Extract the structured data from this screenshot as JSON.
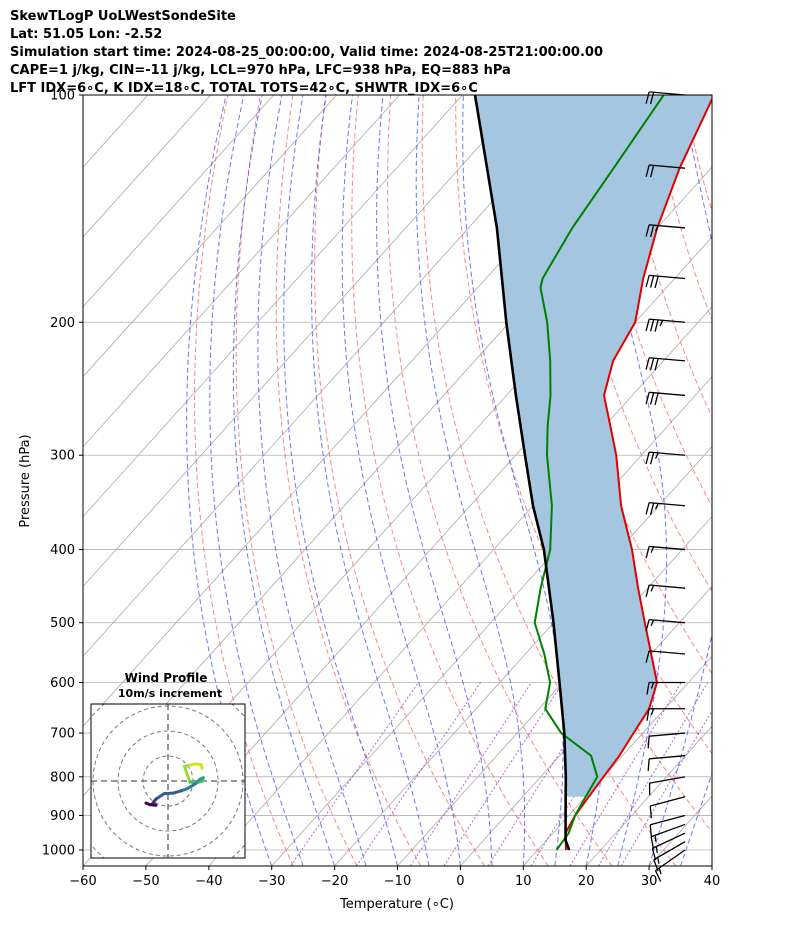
{
  "header": {
    "lines": [
      "SkewTLogP UoLWestSondeSite",
      "Lat: 51.05   Lon: -2.52",
      "Simulation start time: 2024-08-25_00:00:00, Valid time: 2024-08-25T21:00:00.00",
      "CAPE=1 j/kg, CIN=-11 j/kg, LCL=970 hPa, LFC=938 hPa, EQ=883 hPa",
      "LFT IDX=6∘C, K IDX=18∘C, TOTAL TOTS=42∘C, SHWTR_IDX=6∘C"
    ]
  },
  "chart_data": [
    {
      "type": "line",
      "subtype": "skew-t log-p",
      "xlabel": "Temperature (∘C)",
      "ylabel": "Pressure (hPa)",
      "xlim": [
        -60,
        40
      ],
      "ylim": [
        1050,
        100
      ],
      "y_scale": "log",
      "x_ticks": [
        "−60",
        "−50",
        "−40",
        "−30",
        "−20",
        "−10",
        "0",
        "10",
        "20",
        "30",
        "40"
      ],
      "y_ticks": [
        "100",
        "200",
        "300",
        "400",
        "500",
        "600",
        "700",
        "800",
        "900",
        "1000"
      ],
      "grid": true,
      "colors": {
        "temperature": "#e00000",
        "dewpoint": "#008000",
        "parcel": "#000000",
        "cape_fill": "#a5c6e0",
        "dry_adiabat": "#ff6666",
        "moist_adiabat": "#4455ff",
        "mixing_ratio": "#9944cc",
        "isotherm": "#aaaaaa"
      },
      "series": [
        {
          "name": "temperature",
          "values": [
            [
              1000,
              14.5
            ],
            [
              950,
              12
            ],
            [
              900,
              11
            ],
            [
              850,
              10.5
            ],
            [
              800,
              10
            ],
            [
              750,
              9.5
            ],
            [
              700,
              8.5
            ],
            [
              650,
              7.5
            ],
            [
              600,
              5
            ],
            [
              550,
              0
            ],
            [
              500,
              -5.5
            ],
            [
              450,
              -11.5
            ],
            [
              400,
              -18
            ],
            [
              350,
              -26
            ],
            [
              300,
              -34
            ],
            [
              275,
              -39
            ],
            [
              250,
              -44.5
            ],
            [
              225,
              -48
            ],
            [
              200,
              -50
            ],
            [
              175,
              -55
            ],
            [
              150,
              -60
            ],
            [
              125,
              -65
            ],
            [
              100,
              -70
            ]
          ]
        },
        {
          "name": "dewpoint",
          "values": [
            [
              1000,
              13
            ],
            [
              950,
              12.5
            ],
            [
              900,
              11
            ],
            [
              850,
              10
            ],
            [
              800,
              9
            ],
            [
              750,
              5
            ],
            [
              700,
              -3
            ],
            [
              650,
              -9
            ],
            [
              600,
              -12
            ],
            [
              550,
              -17
            ],
            [
              500,
              -23
            ],
            [
              450,
              -27
            ],
            [
              400,
              -31
            ],
            [
              350,
              -37
            ],
            [
              300,
              -45
            ],
            [
              275,
              -49
            ],
            [
              250,
              -53
            ],
            [
              225,
              -58
            ],
            [
              200,
              -64
            ],
            [
              180,
              -70
            ],
            [
              175,
              -71
            ],
            [
              150,
              -73.5
            ],
            [
              125,
              -75.5
            ],
            [
              100,
              -78
            ]
          ]
        },
        {
          "name": "parcel",
          "values": [
            [
              1000,
              15
            ],
            [
              970,
              13
            ],
            [
              900,
              9.5
            ],
            [
              800,
              4
            ],
            [
              700,
              -2.5
            ],
            [
              600,
              -10.5
            ],
            [
              500,
              -20
            ],
            [
              400,
              -32
            ],
            [
              350,
              -40
            ],
            [
              300,
              -48.5
            ],
            [
              250,
              -58.5
            ],
            [
              200,
              -70.5
            ],
            [
              150,
              -85.5
            ],
            [
              100,
              -108
            ]
          ]
        }
      ],
      "wind_barbs": {
        "pressures": [
          1000,
          975,
          950,
          925,
          900,
          850,
          800,
          750,
          700,
          650,
          600,
          550,
          500,
          450,
          400,
          350,
          300,
          250,
          225,
          200,
          175,
          150,
          125,
          100
        ],
        "directions_deg": [
          235,
          240,
          245,
          250,
          255,
          255,
          260,
          265,
          265,
          270,
          270,
          275,
          275,
          275,
          275,
          275,
          275,
          275,
          275,
          275,
          275,
          275,
          275,
          275
        ],
        "speeds_kt": [
          18,
          17,
          16,
          15,
          14,
          13,
          12,
          12,
          14,
          16,
          15,
          14,
          16,
          17,
          18,
          25,
          28,
          30,
          32,
          35,
          30,
          27,
          22,
          20
        ]
      }
    },
    {
      "type": "hodograph",
      "title": "Wind Profile",
      "subtitle": "10m/s increment",
      "grid": true,
      "series": [
        {
          "name": "wind",
          "values": [
            [
              6.2,
              -2.3
            ],
            [
              6.0,
              -3.0
            ],
            [
              5.0,
              -3.1
            ],
            [
              3.6,
              -2.8
            ],
            [
              3.0,
              -2.6
            ],
            [
              4.0,
              0.2
            ],
            [
              5.3,
              0.3
            ],
            [
              6.3,
              0.0
            ],
            [
              6.4,
              -0.6
            ],
            [
              5.8,
              -0.3
            ],
            [
              5.0,
              0.5
            ],
            [
              3.5,
              1.4
            ],
            [
              2.3,
              1.8
            ],
            [
              1.0,
              2.2
            ],
            [
              -0.7,
              2.3
            ],
            [
              -2.2,
              3.3
            ],
            [
              -2.8,
              4.1
            ],
            [
              -2.2,
              4.4
            ],
            [
              -3.3,
              4.3
            ],
            [
              -4.0,
              4.0
            ]
          ]
        }
      ]
    }
  ]
}
